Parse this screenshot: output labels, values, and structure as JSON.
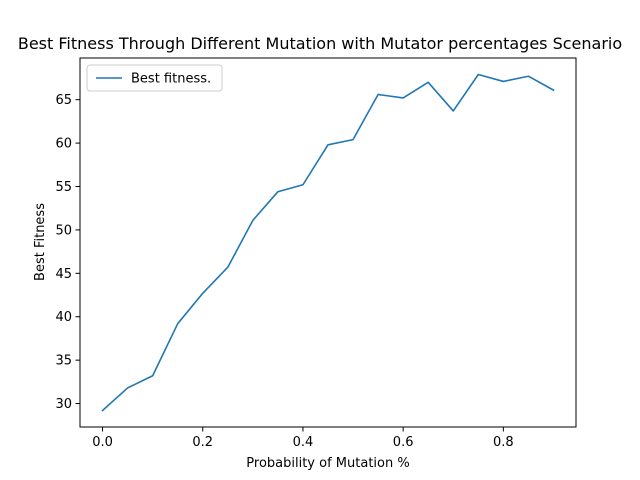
{
  "chart_data": {
    "type": "line",
    "title": "Best Fitness Through Different Mutation with Mutator percentages Scenario",
    "xlabel": "Probability of Mutation %",
    "ylabel": "Best Fitness",
    "xlim": [
      -0.045,
      0.945
    ],
    "ylim": [
      27.3,
      69.8
    ],
    "xticks": [
      "0.0",
      "0.2",
      "0.4",
      "0.6",
      "0.8"
    ],
    "yticks": [
      "30",
      "35",
      "40",
      "45",
      "50",
      "55",
      "60",
      "65"
    ],
    "grid": false,
    "legend_position": "top-left",
    "series": [
      {
        "name": "Best fitness.",
        "color": "#1f77b4",
        "x": [
          0.0,
          0.05,
          0.1,
          0.15,
          0.2,
          0.25,
          0.3,
          0.35,
          0.4,
          0.45,
          0.5,
          0.55,
          0.6,
          0.65,
          0.7,
          0.75,
          0.8,
          0.85,
          0.9
        ],
        "y": [
          29.2,
          31.8,
          33.2,
          39.2,
          42.7,
          45.7,
          51.1,
          54.4,
          55.2,
          59.8,
          60.4,
          65.6,
          65.2,
          67.0,
          63.7,
          67.9,
          67.1,
          67.7,
          66.1
        ]
      }
    ]
  }
}
